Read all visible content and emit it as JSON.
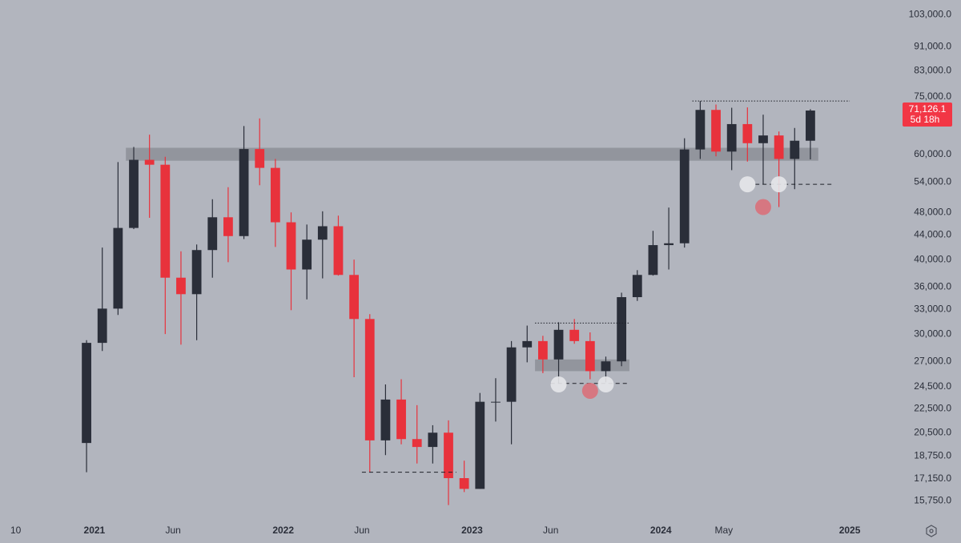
{
  "chart_data": {
    "type": "candlestick",
    "x": [
      "2020-12",
      "2021-01",
      "2021-02",
      "2021-03",
      "2021-04",
      "2021-05",
      "2021-06",
      "2021-07",
      "2021-08",
      "2021-09",
      "2021-10",
      "2021-11",
      "2021-12",
      "2022-01",
      "2022-02",
      "2022-03",
      "2022-04",
      "2022-05",
      "2022-06",
      "2022-07",
      "2022-08",
      "2022-09",
      "2022-10",
      "2022-11",
      "2022-12",
      "2023-01",
      "2023-02",
      "2023-03",
      "2023-04",
      "2023-05",
      "2023-06",
      "2023-07",
      "2023-08",
      "2023-09",
      "2023-10",
      "2023-11",
      "2023-12",
      "2024-01",
      "2024-02",
      "2024-03",
      "2024-04",
      "2024-05",
      "2024-06",
      "2024-07",
      "2024-08",
      "2024-09",
      "2024-10"
    ],
    "open": [
      19700,
      29000,
      33100,
      45200,
      58800,
      57700,
      37300,
      35000,
      41500,
      47100,
      43800,
      61300,
      57000,
      46200,
      38500,
      43200,
      45500,
      37700,
      31800,
      19900,
      23300,
      20000,
      19400,
      20500,
      17200,
      16500,
      23100,
      23100,
      28500,
      29200,
      27200,
      30500,
      29200,
      26000,
      27000,
      34600,
      37700,
      42300,
      42600,
      61200,
      71300,
      60700,
      67500,
      62700,
      64600,
      59000,
      63300
    ],
    "high": [
      29300,
      41900,
      58300,
      61800,
      64800,
      59500,
      41300,
      42400,
      50500,
      52900,
      67000,
      69000,
      59000,
      48000,
      45800,
      48200,
      47400,
      40000,
      32400,
      24700,
      25200,
      22800,
      21100,
      21500,
      18400,
      23900,
      25300,
      29200,
      31000,
      29800,
      31400,
      31800,
      30200,
      27500,
      35200,
      38400,
      44700,
      48900,
      63900,
      73800,
      72800,
      71900,
      72000,
      70000,
      65600,
      66500,
      71500
    ],
    "low": [
      17600,
      28100,
      32300,
      45000,
      47000,
      30000,
      28800,
      29300,
      37300,
      39600,
      43300,
      53300,
      42000,
      32900,
      34300,
      37200,
      37600,
      25400,
      17600,
      18800,
      19600,
      18200,
      18200,
      15500,
      16300,
      16500,
      21400,
      19600,
      26900,
      25800,
      24800,
      28900,
      25200,
      24900,
      26500,
      34100,
      37600,
      38500,
      41900,
      59000,
      59600,
      56500,
      58400,
      53500,
      49000,
      52500,
      58900
    ],
    "close": [
      29000,
      33100,
      45200,
      58800,
      57700,
      37300,
      35000,
      41500,
      47100,
      43800,
      61300,
      57000,
      46200,
      38500,
      43200,
      45500,
      37700,
      31800,
      19900,
      23300,
      20000,
      19400,
      20500,
      17200,
      16500,
      23100,
      23100,
      28500,
      29200,
      27200,
      30500,
      29200,
      26000,
      27000,
      34600,
      37700,
      42300,
      42600,
      61200,
      71300,
      60700,
      67500,
      62700,
      64600,
      59000,
      63300,
      71126.1
    ],
    "up_color": "#2a2e39",
    "down_color": "#e8323c",
    "log_scale": true,
    "grid": false,
    "ylim": [
      14600,
      109000
    ],
    "yticks": [
      {
        "value": 103000,
        "label": "103,000.0"
      },
      {
        "value": 91000,
        "label": "91,000.0"
      },
      {
        "value": 83000,
        "label": "83,000.0"
      },
      {
        "value": 75000,
        "label": "75,000.0"
      },
      {
        "value": 60000,
        "label": "60,000.0"
      },
      {
        "value": 54000,
        "label": "54,000.0"
      },
      {
        "value": 48000,
        "label": "48,000.0"
      },
      {
        "value": 44000,
        "label": "44,000.0"
      },
      {
        "value": 40000,
        "label": "40,000.0"
      },
      {
        "value": 36000,
        "label": "36,000.0"
      },
      {
        "value": 33000,
        "label": "33,000.0"
      },
      {
        "value": 30000,
        "label": "30,000.0"
      },
      {
        "value": 27000,
        "label": "27,000.0"
      },
      {
        "value": 24500,
        "label": "24,500.0"
      },
      {
        "value": 22500,
        "label": "22,500.0"
      },
      {
        "value": 20500,
        "label": "20,500.0"
      },
      {
        "value": 18750,
        "label": "18,750.0"
      },
      {
        "value": 17150,
        "label": "17,150.0"
      },
      {
        "value": 15750,
        "label": "15,750.0"
      }
    ],
    "xlim": [
      "2020-07",
      "2025-04"
    ],
    "xticks": [
      {
        "value": "2020-08",
        "label": "10"
      },
      {
        "value": "2021-01",
        "label": "2021"
      },
      {
        "value": "2021-06",
        "label": "Jun"
      },
      {
        "value": "2022-01",
        "label": "2022"
      },
      {
        "value": "2022-06",
        "label": "Jun"
      },
      {
        "value": "2023-01",
        "label": "2023"
      },
      {
        "value": "2023-06",
        "label": "Jun"
      },
      {
        "value": "2024-01",
        "label": "2024"
      },
      {
        "value": "2024-05",
        "label": "May"
      },
      {
        "value": "2025-01",
        "label": "2025"
      }
    ],
    "last_price_label": "71,126.1",
    "countdown": "5d 18h",
    "zones": [
      {
        "x": [
          "2021-03",
          "2024-11"
        ],
        "y": [
          58600,
          61600
        ]
      },
      {
        "x": [
          "2023-05",
          "2023-11"
        ],
        "y": [
          26000,
          27200
        ]
      }
    ],
    "levels": [
      {
        "x": [
          "2024-03",
          "2025-01"
        ],
        "y": 73800,
        "style": "dotted"
      },
      {
        "x": [
          "2023-05",
          "2023-11"
        ],
        "y": 31300,
        "style": "dotted"
      },
      {
        "x": [
          "2024-07",
          "2024-12"
        ],
        "y": 53500,
        "style": "dashed"
      },
      {
        "x": [
          "2023-06",
          "2023-11"
        ],
        "y": 24800,
        "style": "dashed"
      },
      {
        "x": [
          "2022-06",
          "2022-12"
        ],
        "y": 17600,
        "style": "dashed"
      }
    ],
    "markers": [
      {
        "x": "2024-06",
        "y": 53500,
        "color": "#e6e7ea"
      },
      {
        "x": "2024-08",
        "y": 53500,
        "color": "#e6e7ea"
      },
      {
        "x": "2024-07",
        "y": 49000,
        "color": "#d9707a"
      },
      {
        "x": "2023-06",
        "y": 24700,
        "color": "#e6e7ea"
      },
      {
        "x": "2023-09",
        "y": 24700,
        "color": "#e6e7ea"
      },
      {
        "x": "2023-08",
        "y": 24100,
        "color": "#d9707a"
      }
    ]
  }
}
